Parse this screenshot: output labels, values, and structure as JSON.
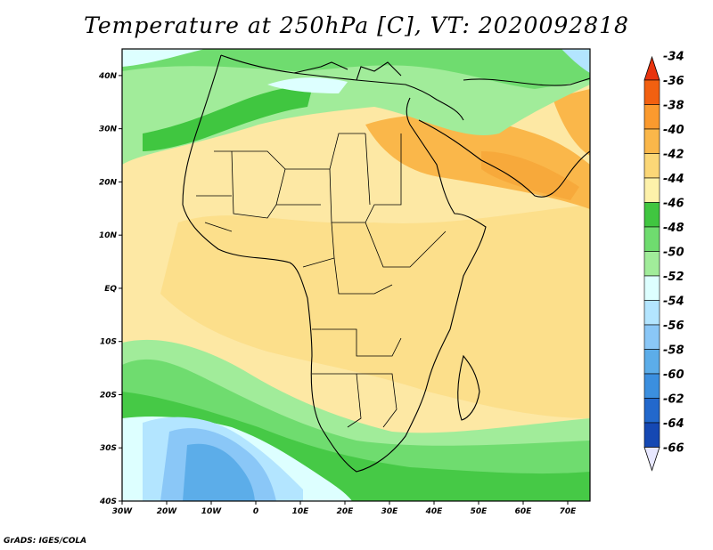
{
  "title": "Temperature at 250hPa [C], VT: 2020092818",
  "credit": "GrADS: IGES/COLA",
  "map": {
    "lon_range": [
      -30,
      75
    ],
    "lat_range": [
      -40,
      45
    ],
    "lon_ticks": [
      {
        "value": -30,
        "label": "30W"
      },
      {
        "value": -20,
        "label": "20W"
      },
      {
        "value": -10,
        "label": "10W"
      },
      {
        "value": 0,
        "label": "0"
      },
      {
        "value": 10,
        "label": "10E"
      },
      {
        "value": 20,
        "label": "20E"
      },
      {
        "value": 30,
        "label": "30E"
      },
      {
        "value": 40,
        "label": "40E"
      },
      {
        "value": 50,
        "label": "50E"
      },
      {
        "value": 60,
        "label": "60E"
      },
      {
        "value": 70,
        "label": "70E"
      }
    ],
    "lat_ticks": [
      {
        "value": 40,
        "label": "40N"
      },
      {
        "value": 30,
        "label": "30N"
      },
      {
        "value": 20,
        "label": "20N"
      },
      {
        "value": 10,
        "label": "10N"
      },
      {
        "value": 0,
        "label": "EQ"
      },
      {
        "value": -10,
        "label": "10S"
      },
      {
        "value": -20,
        "label": "20S"
      },
      {
        "value": -30,
        "label": "30S"
      },
      {
        "value": -40,
        "label": "40S"
      }
    ]
  },
  "colorbar": {
    "labels": [
      "-34",
      "-36",
      "-38",
      "-40",
      "-42",
      "-44",
      "-46",
      "-48",
      "-50",
      "-52",
      "-54",
      "-56",
      "-58",
      "-60",
      "-62",
      "-64",
      "-66"
    ],
    "colors": [
      "#e8340e",
      "#f26010",
      "#fb9a2e",
      "#fab74a",
      "#fbd777",
      "#fdf1aa",
      "#40c640",
      "#6fdc6f",
      "#a1ec9a",
      "#ddffff",
      "#b3e5ff",
      "#8ac7f7",
      "#5cade9",
      "#3b8fdf",
      "#2268cc",
      "#1548b3",
      "#0a1f78"
    ]
  },
  "colors": {
    "background_field": "#fde8a4",
    "coast": "#000000"
  }
}
